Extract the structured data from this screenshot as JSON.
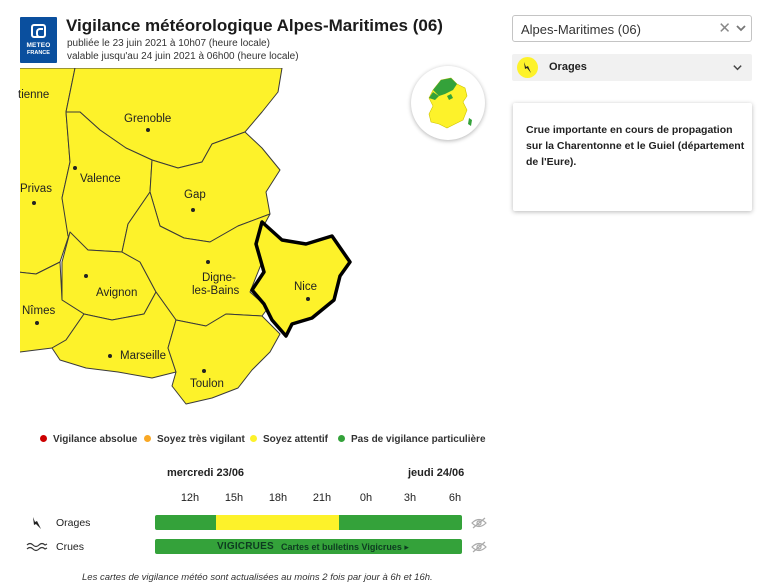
{
  "header": {
    "logo_line1": "METEO",
    "logo_line2": "FRANCE",
    "title": "Vigilance météorologique Alpes-Maritimes  (06)",
    "published": "publiée le 23 juin 2021 à 10h07 (heure locale)",
    "valid_until": "valable jusqu'au 24 juin 2021 à 06h00 (heure locale)"
  },
  "map": {
    "cities": [
      "tienne",
      "Grenoble",
      "Privas",
      "Valence",
      "Gap",
      "Avignon",
      "Digne-",
      "les-Bains",
      "Nîmes",
      "Nice",
      "Marseille",
      "Toulon"
    ],
    "fill_color": "#fdf22a",
    "selected_border_color": "#000000"
  },
  "department_select": {
    "value": "Alpes-Maritimes  (06)",
    "clear_icon": "✕",
    "chevron_icon": "chevron-down-icon"
  },
  "risk_dropdown": {
    "label": "Orages",
    "icon": "lightning-icon",
    "badge_color": "#fdf22a"
  },
  "info_box": {
    "text": "Crue importante en cours de propagation sur la Charentonne et le Guiel (département de l'Eure)."
  },
  "legend": [
    {
      "label": "Vigilance absolue",
      "color": "#cc0000"
    },
    {
      "label": "Soyez très vigilant",
      "color": "#f9a825"
    },
    {
      "label": "Soyez attentif",
      "color": "#fdf22a"
    },
    {
      "label": "Pas de vigilance particulière",
      "color": "#34a23a"
    }
  ],
  "timeline": {
    "day1": "mercredi 23/06",
    "day2": "jeudi 24/06",
    "hours": [
      "12h",
      "15h",
      "18h",
      "21h",
      "0h",
      "3h",
      "6h"
    ],
    "rows": [
      {
        "label": "Orages",
        "icon": "lightning-icon",
        "segments": [
          {
            "from": 0.0,
            "to": 0.2,
            "color": "#34a23a"
          },
          {
            "from": 0.2,
            "to": 0.6,
            "color": "#fdf22a"
          },
          {
            "from": 0.6,
            "to": 1.0,
            "color": "#34a23a"
          }
        ]
      },
      {
        "label": "Crues",
        "icon": "waves-icon",
        "segments": [
          {
            "from": 0.0,
            "to": 1.0,
            "color": "#34a23a"
          }
        ],
        "brand": "VIGICRUES",
        "link": "Cartes et bulletins Vigicrues ▸"
      }
    ]
  },
  "footnote": "Les cartes de vigilance météo sont actualisées au moins 2 fois par jour à 6h et 16h."
}
